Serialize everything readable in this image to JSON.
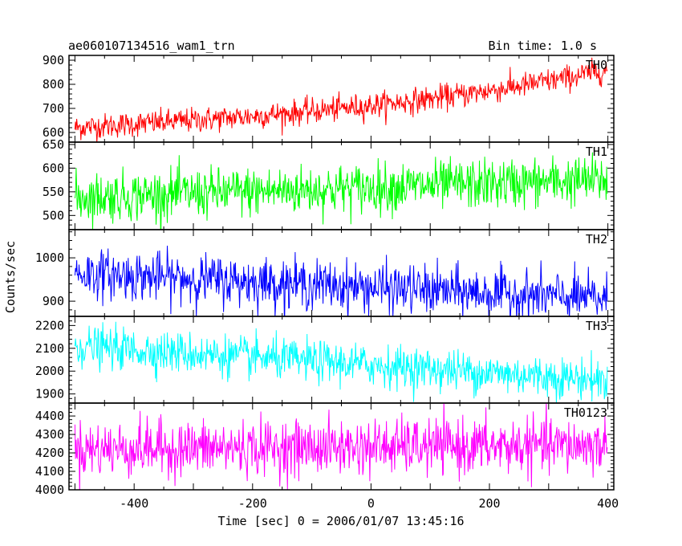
{
  "header": {
    "left": "ae060107134516_wam1_trn",
    "right": "Bin time: 1.0 s"
  },
  "axes": {
    "ylabel": "Counts/sec",
    "xlabel": "Time [sec] 0 = 2006/01/07 13:45:16"
  },
  "chart_data": {
    "type": "line",
    "x_range": [
      -510,
      410
    ],
    "x_ticks": [
      -400,
      -200,
      0,
      200,
      400
    ],
    "x_minor_step": 50,
    "bin_time_s": 1.0,
    "x_start": -500,
    "x_end": 399,
    "panels": [
      {
        "name": "TH0",
        "color": "#ff0000",
        "ylim": [
          560,
          920
        ],
        "y_ticks": [
          600,
          700,
          800,
          900
        ],
        "series": {
          "name": "TH0",
          "trend_start": 620,
          "trend_end": 860,
          "curvature": "increasing, accelerating after +250 s",
          "noise_sigma": 26,
          "typical_max": 940
        }
      },
      {
        "name": "TH1",
        "color": "#00ff00",
        "ylim": [
          470,
          655
        ],
        "y_ticks": [
          500,
          550,
          600,
          650
        ],
        "series": {
          "name": "TH1",
          "trend_start": 538,
          "trend_end": 575,
          "noise_sigma": 26
        }
      },
      {
        "name": "TH2",
        "color": "#0000ff",
        "ylim": [
          865,
          1065
        ],
        "y_ticks": [
          900,
          1000
        ],
        "series": {
          "name": "TH2",
          "trend_start": 965,
          "trend_end": 905,
          "noise_sigma": 28
        }
      },
      {
        "name": "TH3",
        "color": "#00ffff",
        "ylim": [
          1860,
          2240
        ],
        "y_ticks": [
          1900,
          2000,
          2100,
          2200
        ],
        "series": {
          "name": "TH3",
          "trend_start": 2110,
          "trend_end": 1960,
          "noise_sigma": 45
        }
      },
      {
        "name": "TH0123",
        "color": "#ff00ff",
        "ylim": [
          4000,
          4470
        ],
        "y_ticks": [
          4000,
          4100,
          4200,
          4300,
          4400
        ],
        "series": {
          "name": "TH0123",
          "trend_start": 4220,
          "trend_end": 4240,
          "noise_sigma": 75
        }
      }
    ]
  }
}
